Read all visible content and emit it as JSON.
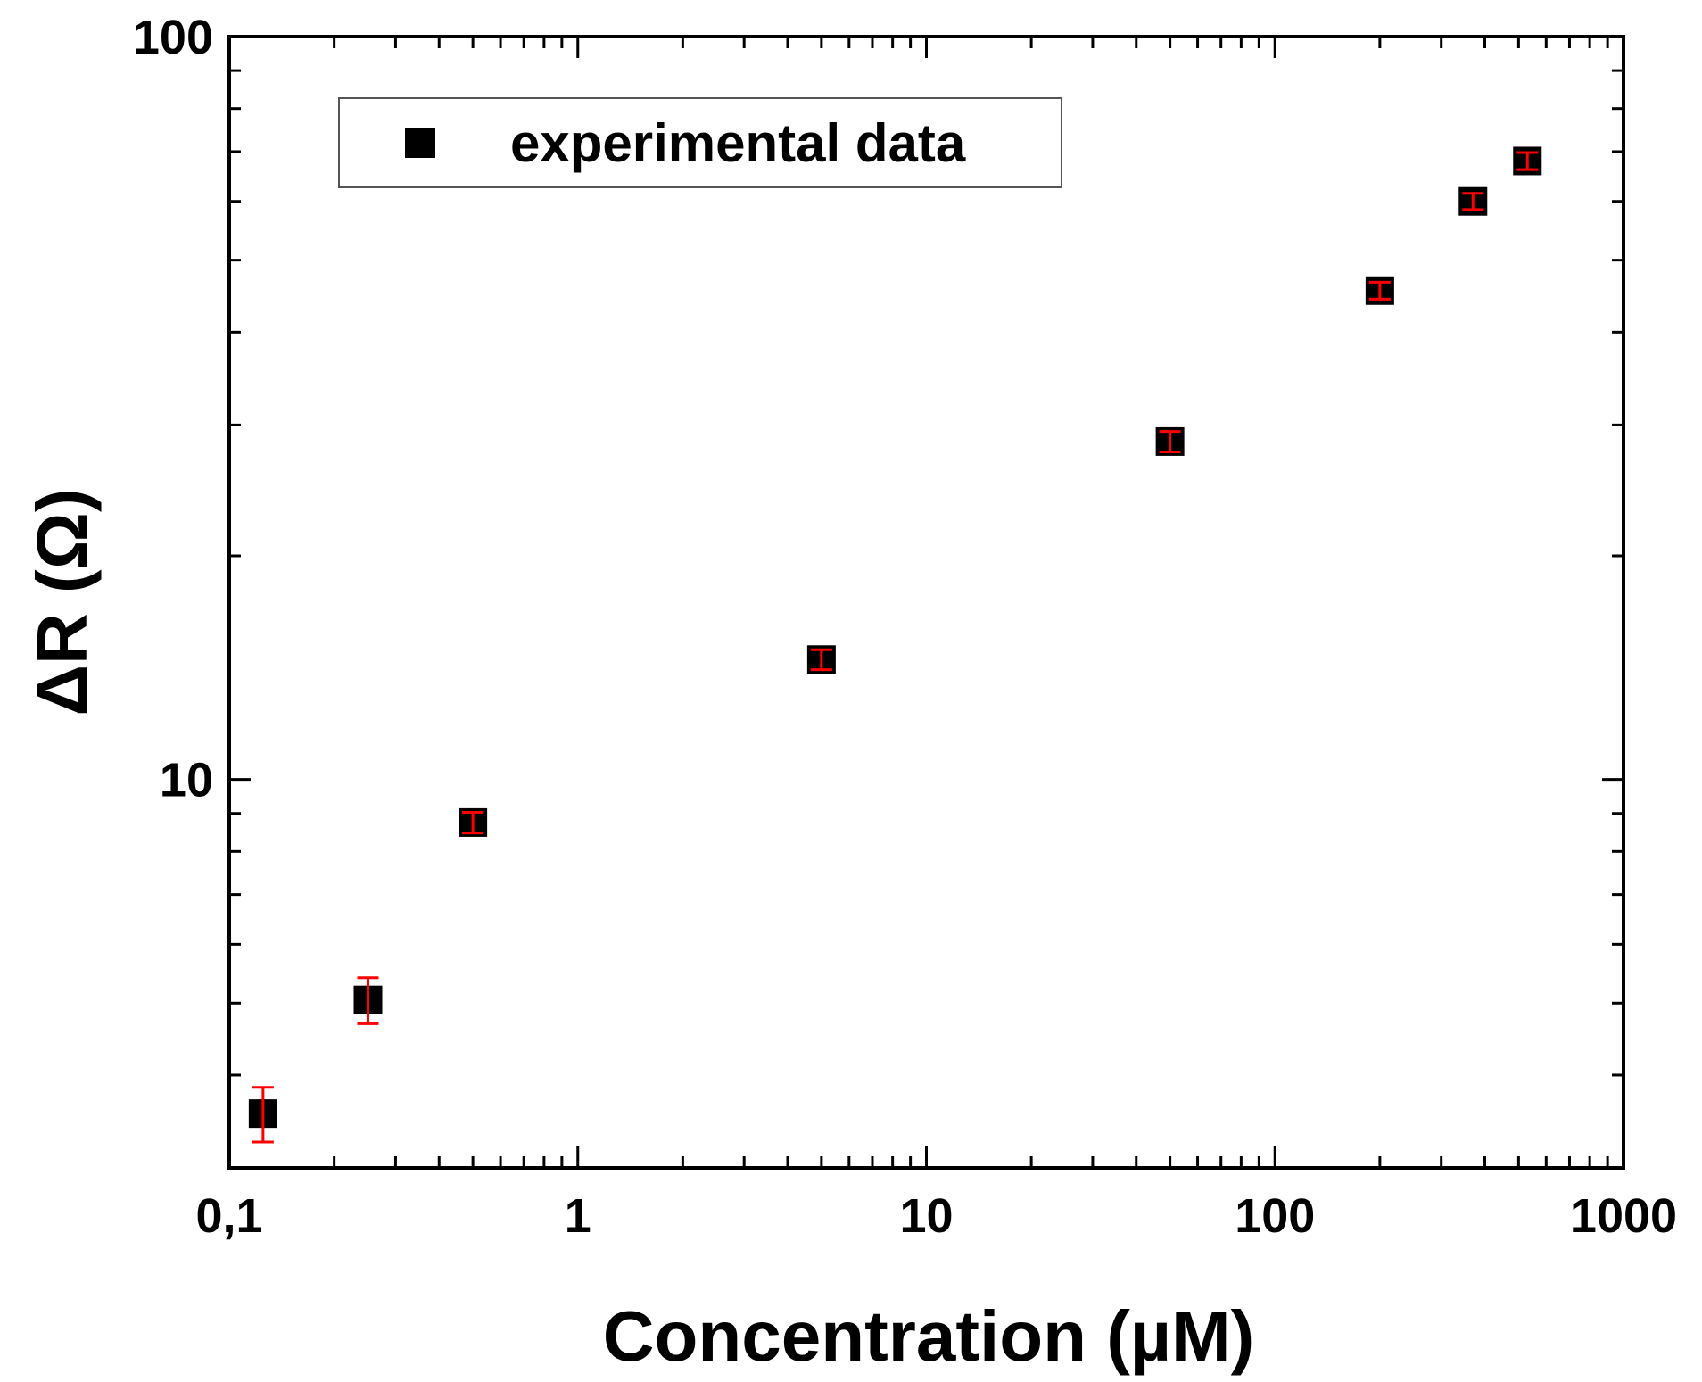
{
  "chart_data": {
    "type": "scatter",
    "title": "",
    "xlabel": "Concentration (µM)",
    "ylabel": "ΔR (Ω)",
    "xscale": "log",
    "yscale": "log",
    "xlim": [
      0.1,
      1000
    ],
    "ylim": [
      3.0,
      100
    ],
    "grid": false,
    "x_tick_labels": [
      {
        "value": 0.1,
        "label": "0,1"
      },
      {
        "value": 1,
        "label": "1"
      },
      {
        "value": 10,
        "label": "10"
      },
      {
        "value": 100,
        "label": "100"
      },
      {
        "value": 1000,
        "label": "1000"
      }
    ],
    "y_tick_labels": [
      {
        "value": 10,
        "label": "10"
      },
      {
        "value": 100,
        "label": "100"
      }
    ],
    "legend": {
      "position": "top-left",
      "entries": [
        "experimental data"
      ]
    },
    "series": [
      {
        "name": "experimental data",
        "marker": "square",
        "marker_color": "#000000",
        "error_color": "#ff0000",
        "points": [
          {
            "x": 0.125,
            "y": 3.55,
            "err": 0.3
          },
          {
            "x": 0.25,
            "y": 5.05,
            "err": 0.36
          },
          {
            "x": 0.5,
            "y": 8.75,
            "err": 0.28
          },
          {
            "x": 5,
            "y": 14.5,
            "err": 0.45
          },
          {
            "x": 50,
            "y": 28.5,
            "err": 0.9
          },
          {
            "x": 200,
            "y": 45.5,
            "err": 1.2
          },
          {
            "x": 370,
            "y": 60.0,
            "err": 1.5
          },
          {
            "x": 530,
            "y": 68.0,
            "err": 1.8
          }
        ]
      }
    ]
  }
}
